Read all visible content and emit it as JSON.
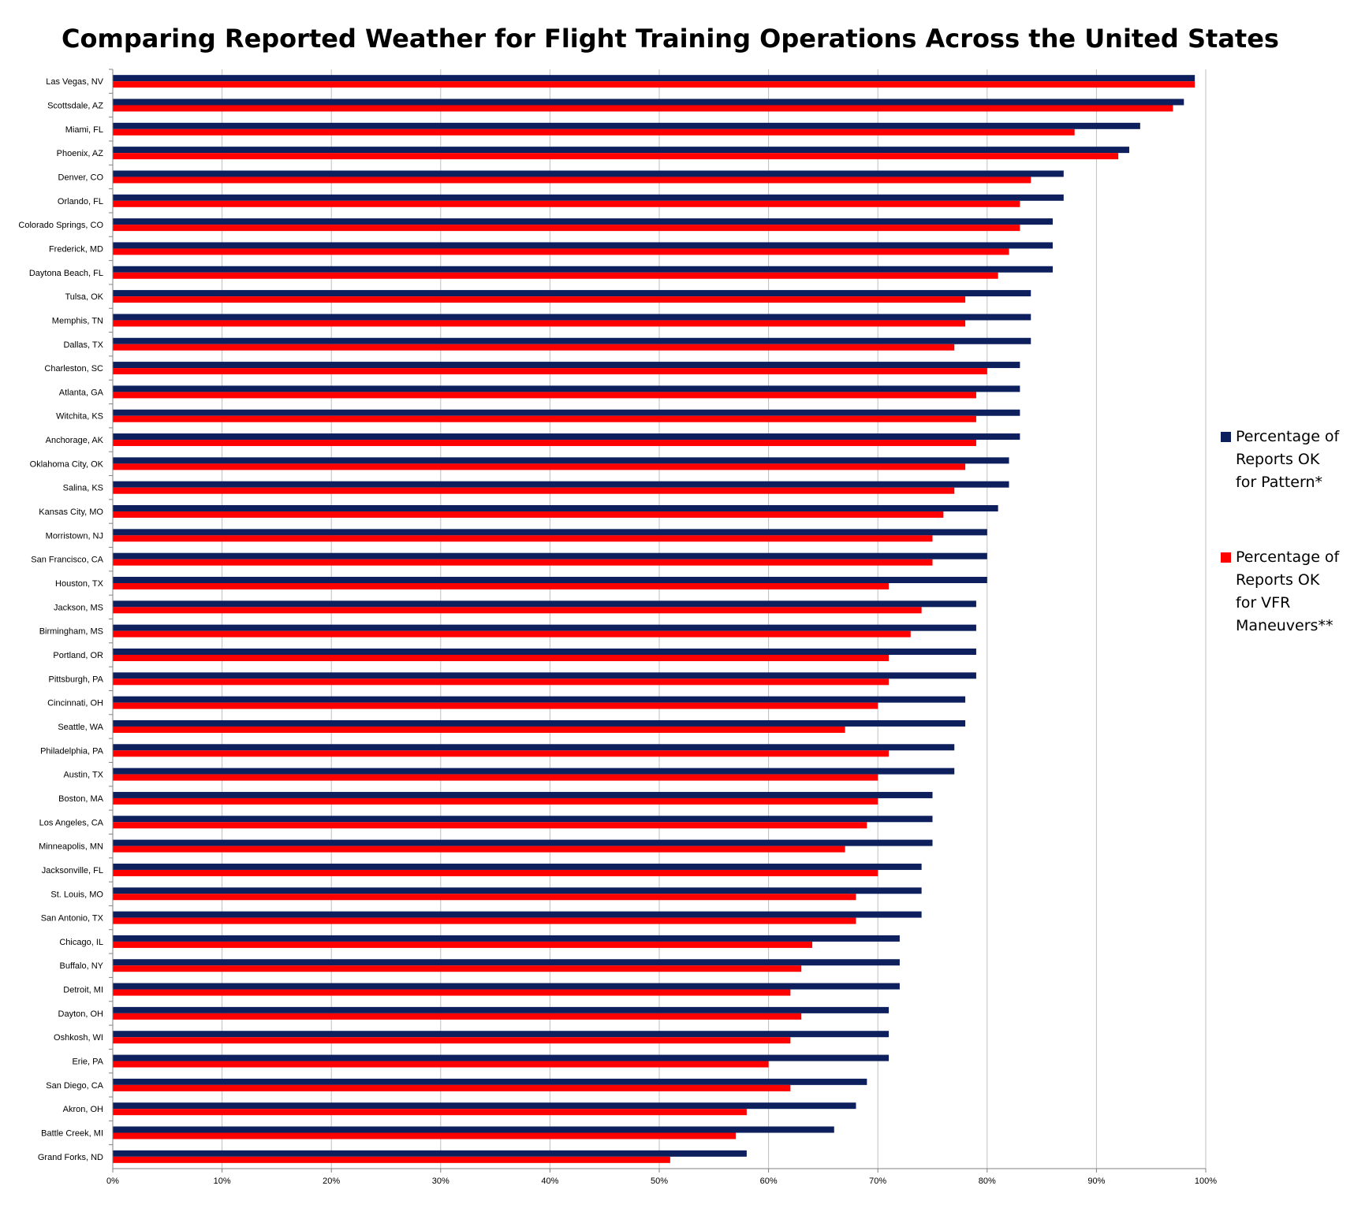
{
  "chart_data": {
    "type": "bar",
    "orientation": "horizontal",
    "title": "Comparing Reported Weather for Flight Training Operations Across the United States",
    "xlabel": "",
    "ylabel": "",
    "xlim": [
      0,
      1
    ],
    "x_ticks": [
      "0%",
      "10%",
      "20%",
      "30%",
      "40%",
      "50%",
      "60%",
      "70%",
      "80%",
      "90%",
      "100%"
    ],
    "grid": "vertical",
    "legend_position": "right",
    "categories": [
      "Las Vegas, NV",
      "Scottsdale, AZ",
      "Miami, FL",
      "Phoenix, AZ",
      "Denver, CO",
      "Orlando, FL",
      "Colorado Springs, CO",
      "Frederick, MD",
      "Daytona Beach, FL",
      "Tulsa, OK",
      "Memphis, TN",
      "Dallas, TX",
      "Charleston, SC",
      "Atlanta, GA",
      "Witchita, KS",
      "Anchorage, AK",
      "Oklahoma City, OK",
      "Salina, KS",
      "Kansas City, MO",
      "Morristown, NJ",
      "San Francisco, CA",
      "Houston, TX",
      "Jackson, MS",
      "Birmingham, MS",
      "Portland, OR",
      "Pittsburgh, PA",
      "Cincinnati, OH",
      "Seattle, WA",
      "Philadelphia, PA",
      "Austin, TX",
      "Boston, MA",
      "Los Angeles, CA",
      "Minneapolis, MN",
      "Jacksonville, FL",
      "St. Louis, MO",
      "San Antonio, TX",
      "Chicago, IL",
      "Buffalo, NY",
      "Detroit, MI",
      "Dayton, OH",
      "Oshkosh, WI",
      "Erie, PA",
      "San Diego, CA",
      "Akron, OH",
      "Battle Creek, MI",
      "Grand Forks, ND"
    ],
    "series": [
      {
        "name": "Percentage of Reports OK for Pattern*",
        "color": "#0D1F5C",
        "values": [
          0.99,
          0.98,
          0.94,
          0.93,
          0.87,
          0.87,
          0.86,
          0.86,
          0.86,
          0.84,
          0.84,
          0.84,
          0.83,
          0.83,
          0.83,
          0.83,
          0.82,
          0.82,
          0.81,
          0.8,
          0.8,
          0.8,
          0.79,
          0.79,
          0.79,
          0.79,
          0.78,
          0.78,
          0.77,
          0.77,
          0.75,
          0.75,
          0.75,
          0.74,
          0.74,
          0.74,
          0.72,
          0.72,
          0.72,
          0.71,
          0.71,
          0.71,
          0.69,
          0.68,
          0.66,
          0.58
        ]
      },
      {
        "name": "Percentage of Reports OK for VFR Maneuvers**",
        "color": "#FF0000",
        "values": [
          0.99,
          0.97,
          0.88,
          0.92,
          0.84,
          0.83,
          0.83,
          0.82,
          0.81,
          0.78,
          0.78,
          0.77,
          0.8,
          0.79,
          0.79,
          0.79,
          0.78,
          0.77,
          0.76,
          0.75,
          0.75,
          0.71,
          0.74,
          0.73,
          0.71,
          0.71,
          0.7,
          0.67,
          0.71,
          0.7,
          0.7,
          0.69,
          0.67,
          0.7,
          0.68,
          0.68,
          0.64,
          0.63,
          0.62,
          0.63,
          0.62,
          0.6,
          0.62,
          0.58,
          0.57,
          0.51
        ]
      }
    ],
    "legend": {
      "pattern": [
        "Percentage of",
        "Reports OK",
        "for Pattern*"
      ],
      "vfr": [
        "Percentage of",
        "Reports OK",
        "for VFR",
        "Maneuvers**"
      ]
    }
  }
}
